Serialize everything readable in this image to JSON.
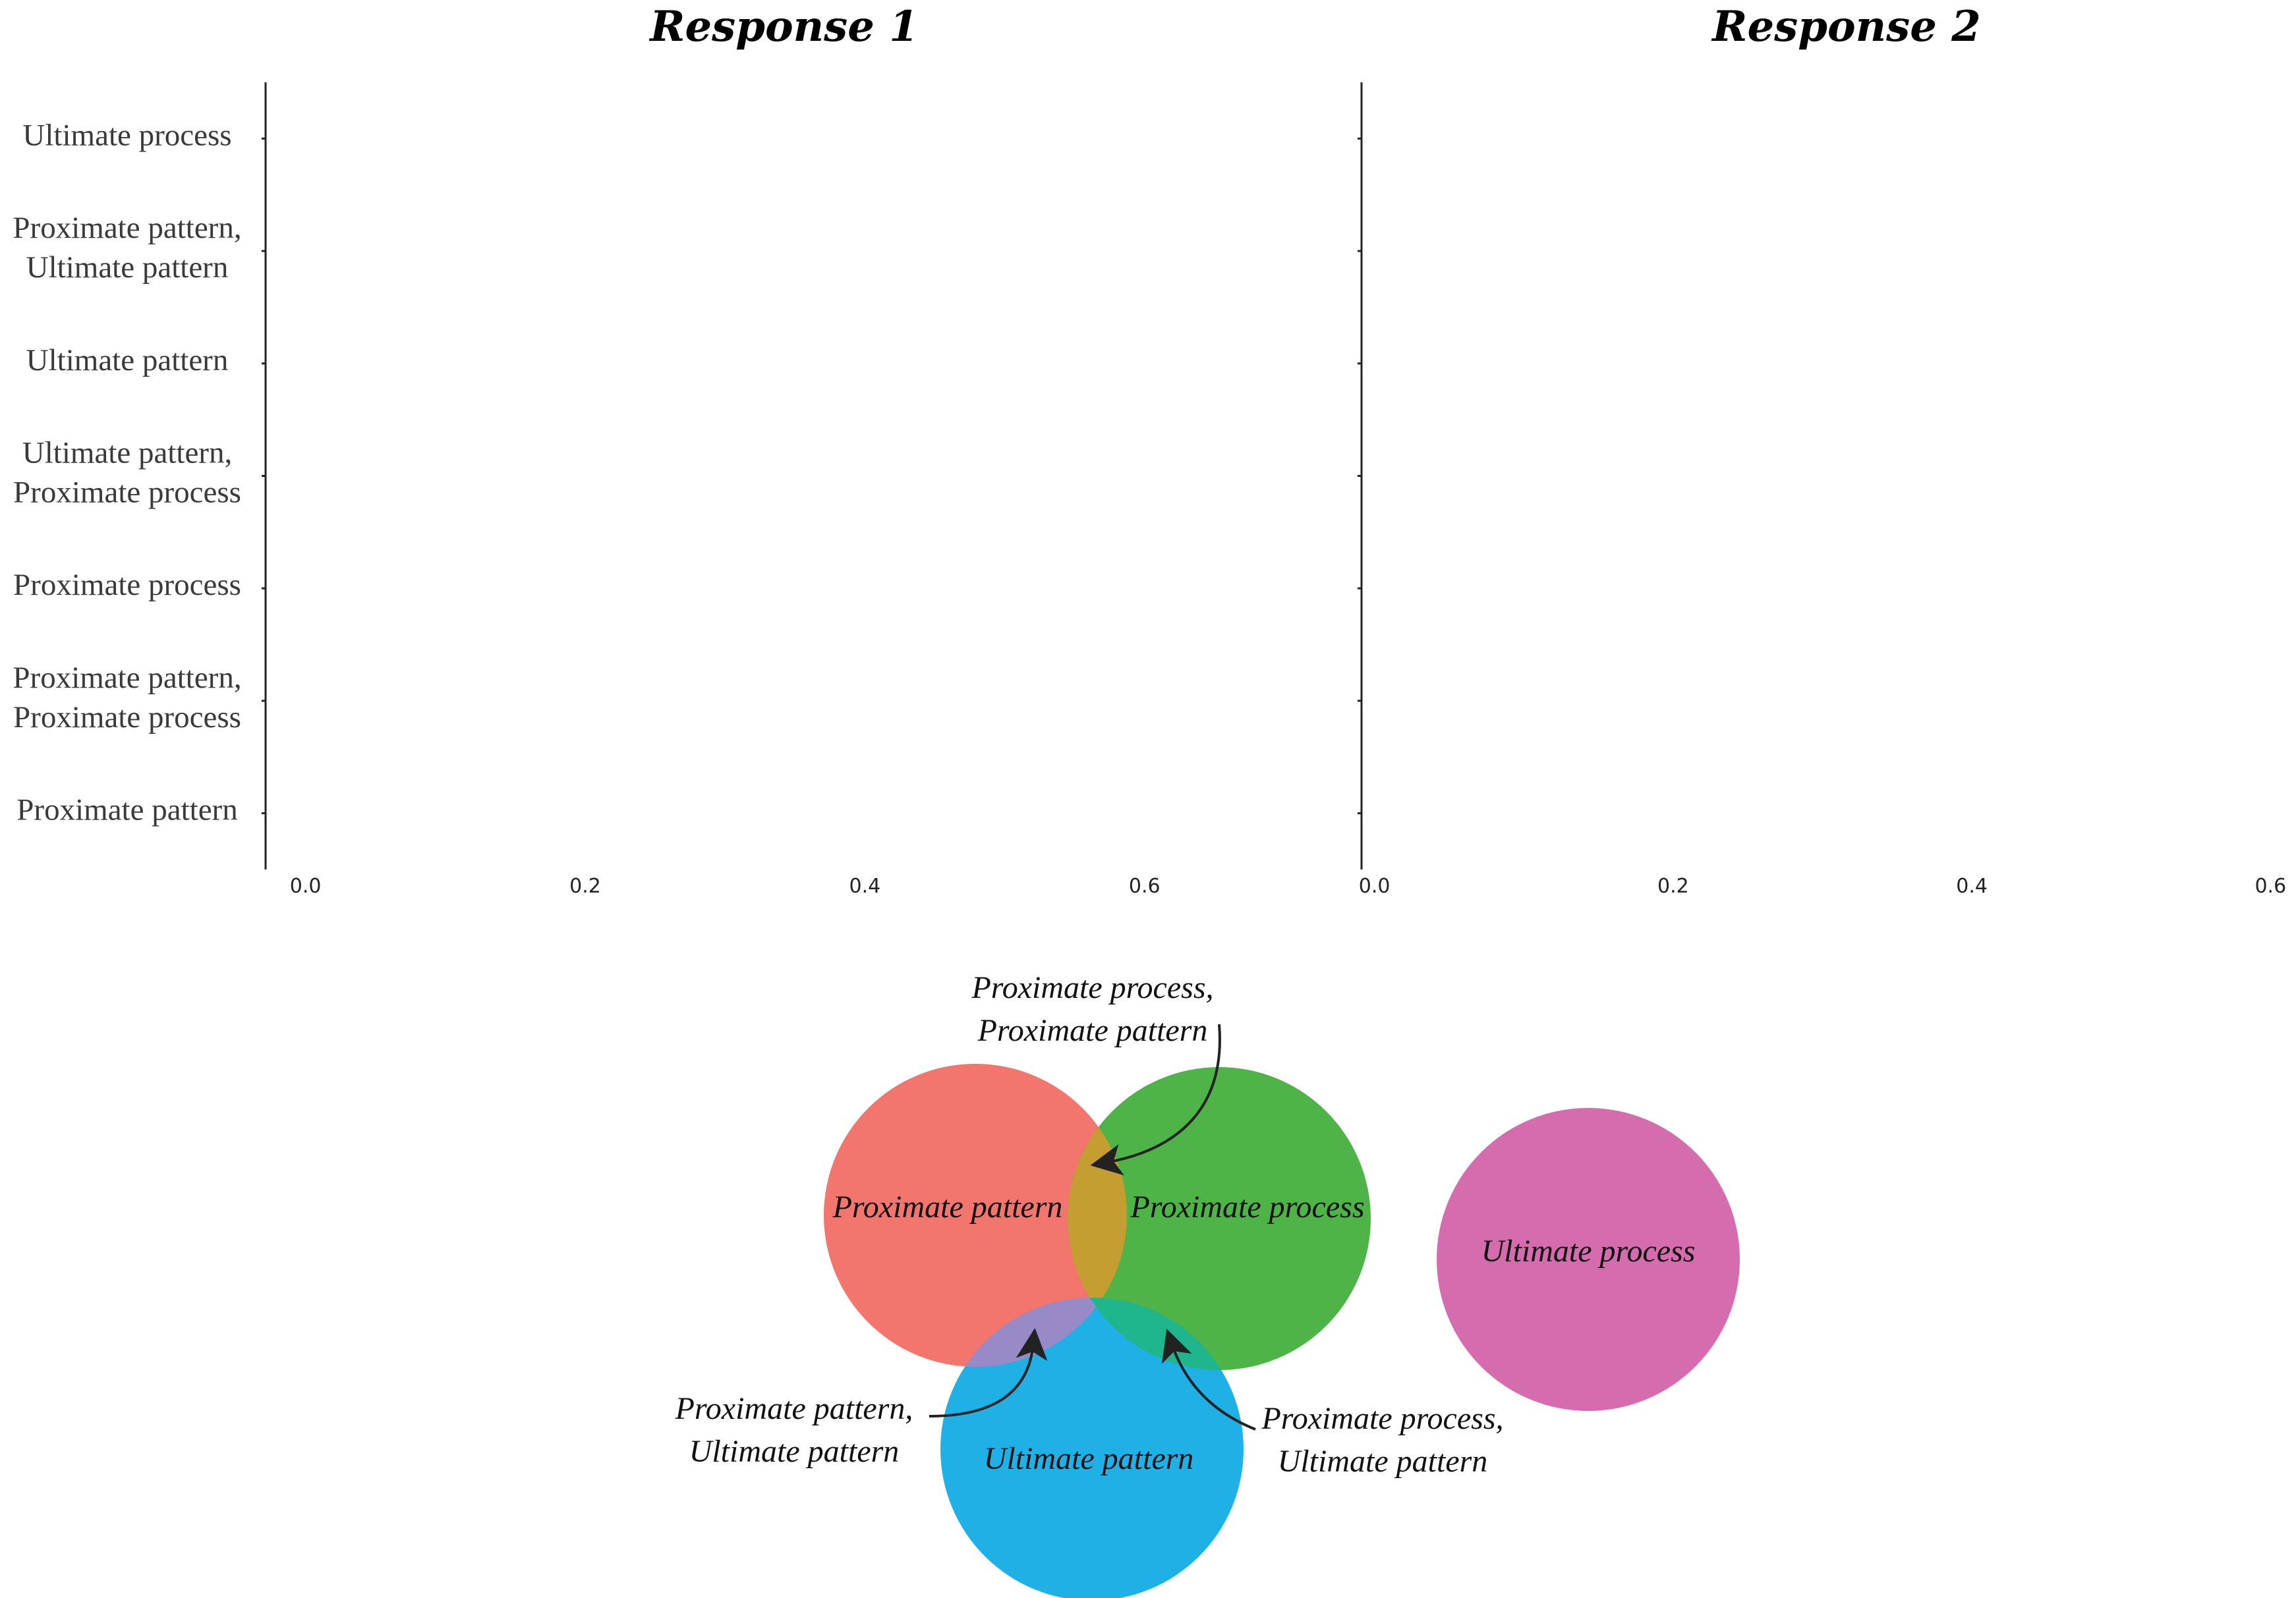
{
  "chart_data": [
    {
      "type": "bar",
      "orientation": "horizontal",
      "title": "Response 1",
      "categories": [
        "Ultimate process",
        "Proximate pattern,\nUltimate pattern",
        "Ultimate pattern",
        "Ultimate pattern,\nProximate process",
        "Proximate process",
        "Proximate pattern,\nProximate process",
        "Proximate pattern"
      ],
      "values": [
        0,
        0,
        0,
        0,
        0,
        0,
        0
      ],
      "xlim": [
        -0.03,
        0.75
      ],
      "xticks": [
        "0.0",
        "0.2",
        "0.4",
        "0.6"
      ],
      "grid": false,
      "xlabel": "",
      "ylabel": ""
    },
    {
      "type": "bar",
      "orientation": "horizontal",
      "title": "Response 2",
      "categories": [
        "Ultimate process",
        "Proximate pattern,\nUltimate pattern",
        "Ultimate pattern",
        "Ultimate pattern,\nProximate process",
        "Proximate process",
        "Proximate pattern,\nProximate process",
        "Proximate pattern"
      ],
      "values": [
        0,
        0,
        0,
        0,
        0,
        0,
        0
      ],
      "xlim": [
        -0.01,
        0.61
      ],
      "xticks": [
        "0.0",
        "0.2",
        "0.4",
        "0.6"
      ],
      "grid": false,
      "xlabel": "",
      "ylabel": ""
    }
  ],
  "venn": {
    "sets": [
      {
        "label": "Proximate pattern",
        "color": "#f2766d"
      },
      {
        "label": "Proximate process",
        "color": "#4fb447"
      },
      {
        "label": "Ultimate pattern",
        "color": "#1fb1e6"
      },
      {
        "label": "Ultimate process",
        "color": "#d46cad"
      }
    ],
    "overlaps": [
      {
        "label": "Proximate process,\nProximate pattern",
        "color": "#c49e30"
      },
      {
        "label": "Proximate pattern,\nUltimate pattern",
        "color": "#988ac6"
      },
      {
        "label": "Proximate process,\nUltimate pattern",
        "color": "#1fb58d"
      }
    ]
  }
}
